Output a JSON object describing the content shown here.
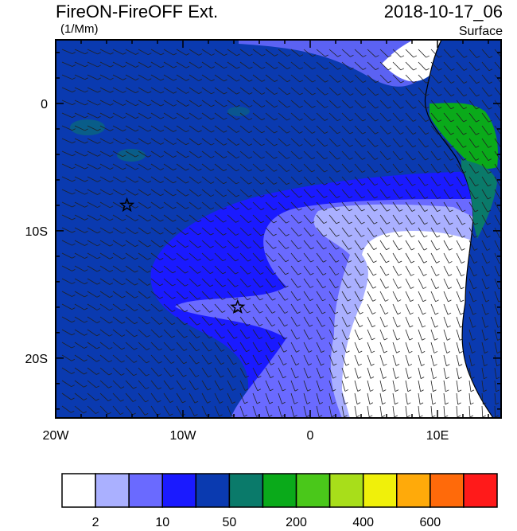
{
  "header": {
    "title": "FireON-FireOFF Ext.",
    "units": "(1/Mm)",
    "datetime": "2018-10-17_06",
    "level": "Surface"
  },
  "axes": {
    "lon_ticks": [
      "20W",
      "10W",
      "0",
      "10E"
    ],
    "lat_ticks": [
      "0",
      "10S",
      "20S"
    ]
  },
  "colorbar": {
    "colors": [
      "#ffffff",
      "#aab0ff",
      "#6a6aff",
      "#1a1aff",
      "#0a3ab0",
      "#0a7a6a",
      "#0aaa1a",
      "#4ac81a",
      "#a8de1a",
      "#f0f00a",
      "#ffaa0a",
      "#ff6a0a",
      "#ff1a1a"
    ],
    "labels": [
      "2",
      "10",
      "50",
      "200",
      "400",
      "600"
    ]
  },
  "markers": [
    {
      "name": "star-marker-north",
      "lon": -14.4,
      "lat": -8.0
    },
    {
      "name": "star-marker-south",
      "lon": -5.7,
      "lat": -16.0
    }
  ]
}
